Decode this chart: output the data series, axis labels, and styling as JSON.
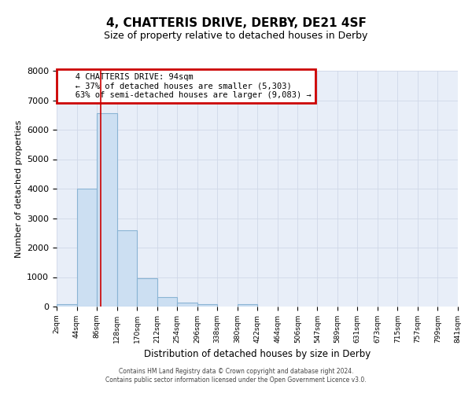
{
  "title": "4, CHATTERIS DRIVE, DERBY, DE21 4SF",
  "subtitle": "Size of property relative to detached houses in Derby",
  "xlabel": "Distribution of detached houses by size in Derby",
  "ylabel": "Number of detached properties",
  "bin_edges": [
    2,
    44,
    86,
    128,
    170,
    212,
    254,
    296,
    338,
    380,
    422,
    464,
    506,
    547,
    589,
    631,
    673,
    715,
    757,
    799,
    841
  ],
  "bar_heights": [
    70,
    4000,
    6550,
    2600,
    960,
    320,
    130,
    75,
    0,
    80,
    0,
    0,
    0,
    0,
    0,
    0,
    0,
    0,
    0,
    0
  ],
  "bar_color": "#ccdff2",
  "bar_edge_color": "#8ab4d4",
  "grid_color": "#d0d8e8",
  "bg_color": "#e8eef8",
  "red_line_x": 94,
  "ylim": [
    0,
    8000
  ],
  "annotation_title": "4 CHATTERIS DRIVE: 94sqm",
  "annotation_line1": "← 37% of detached houses are smaller (5,303)",
  "annotation_line2": "63% of semi-detached houses are larger (9,083) →",
  "annotation_box_color": "#cc0000",
  "footer_line1": "Contains HM Land Registry data © Crown copyright and database right 2024.",
  "footer_line2": "Contains public sector information licensed under the Open Government Licence v3.0.",
  "tick_labels": [
    "2sqm",
    "44sqm",
    "86sqm",
    "128sqm",
    "170sqm",
    "212sqm",
    "254sqm",
    "296sqm",
    "338sqm",
    "380sqm",
    "422sqm",
    "464sqm",
    "506sqm",
    "547sqm",
    "589sqm",
    "631sqm",
    "673sqm",
    "715sqm",
    "757sqm",
    "799sqm",
    "841sqm"
  ],
  "ytick_labels": [
    "0",
    "1000",
    "2000",
    "3000",
    "4000",
    "5000",
    "6000",
    "7000",
    "8000"
  ],
  "ytick_vals": [
    0,
    1000,
    2000,
    3000,
    4000,
    5000,
    6000,
    7000,
    8000
  ]
}
